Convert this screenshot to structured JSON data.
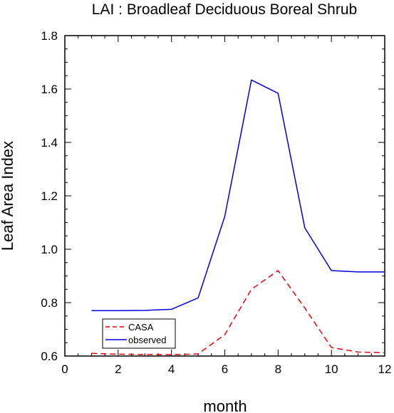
{
  "chart_data": {
    "type": "line",
    "title": "LAI : Broadleaf Deciduous Boreal Shrub",
    "xlabel": "month",
    "ylabel": "Leaf Area Index",
    "xlim": [
      0,
      12
    ],
    "ylim": [
      0.6,
      1.8
    ],
    "x_ticks": [
      0,
      2,
      4,
      6,
      8,
      10,
      12
    ],
    "x_tick_labels": [
      "0",
      "2",
      "4",
      "6",
      "8",
      "10",
      "12"
    ],
    "y_ticks": [
      0.6,
      0.8,
      1.0,
      1.2,
      1.4,
      1.6,
      1.8
    ],
    "y_tick_labels": [
      "0.6",
      "0.8",
      "1.0",
      "1.2",
      "1.4",
      "1.6",
      "1.8"
    ],
    "x": [
      1,
      2,
      3,
      4,
      5,
      6,
      7,
      8,
      9,
      10,
      11,
      12
    ],
    "series": [
      {
        "name": "CASA",
        "color": "#e8000b",
        "style": "dashed",
        "values": [
          0.61,
          0.607,
          0.606,
          0.605,
          0.608,
          0.68,
          0.85,
          0.92,
          0.78,
          0.632,
          0.615,
          0.612
        ]
      },
      {
        "name": "observed",
        "color": "#0000e0",
        "style": "solid",
        "values": [
          0.77,
          0.77,
          0.771,
          0.775,
          0.818,
          1.123,
          1.634,
          1.584,
          1.08,
          0.92,
          0.915,
          0.915
        ]
      }
    ],
    "grid": false,
    "legend_position": "bottom-left"
  }
}
